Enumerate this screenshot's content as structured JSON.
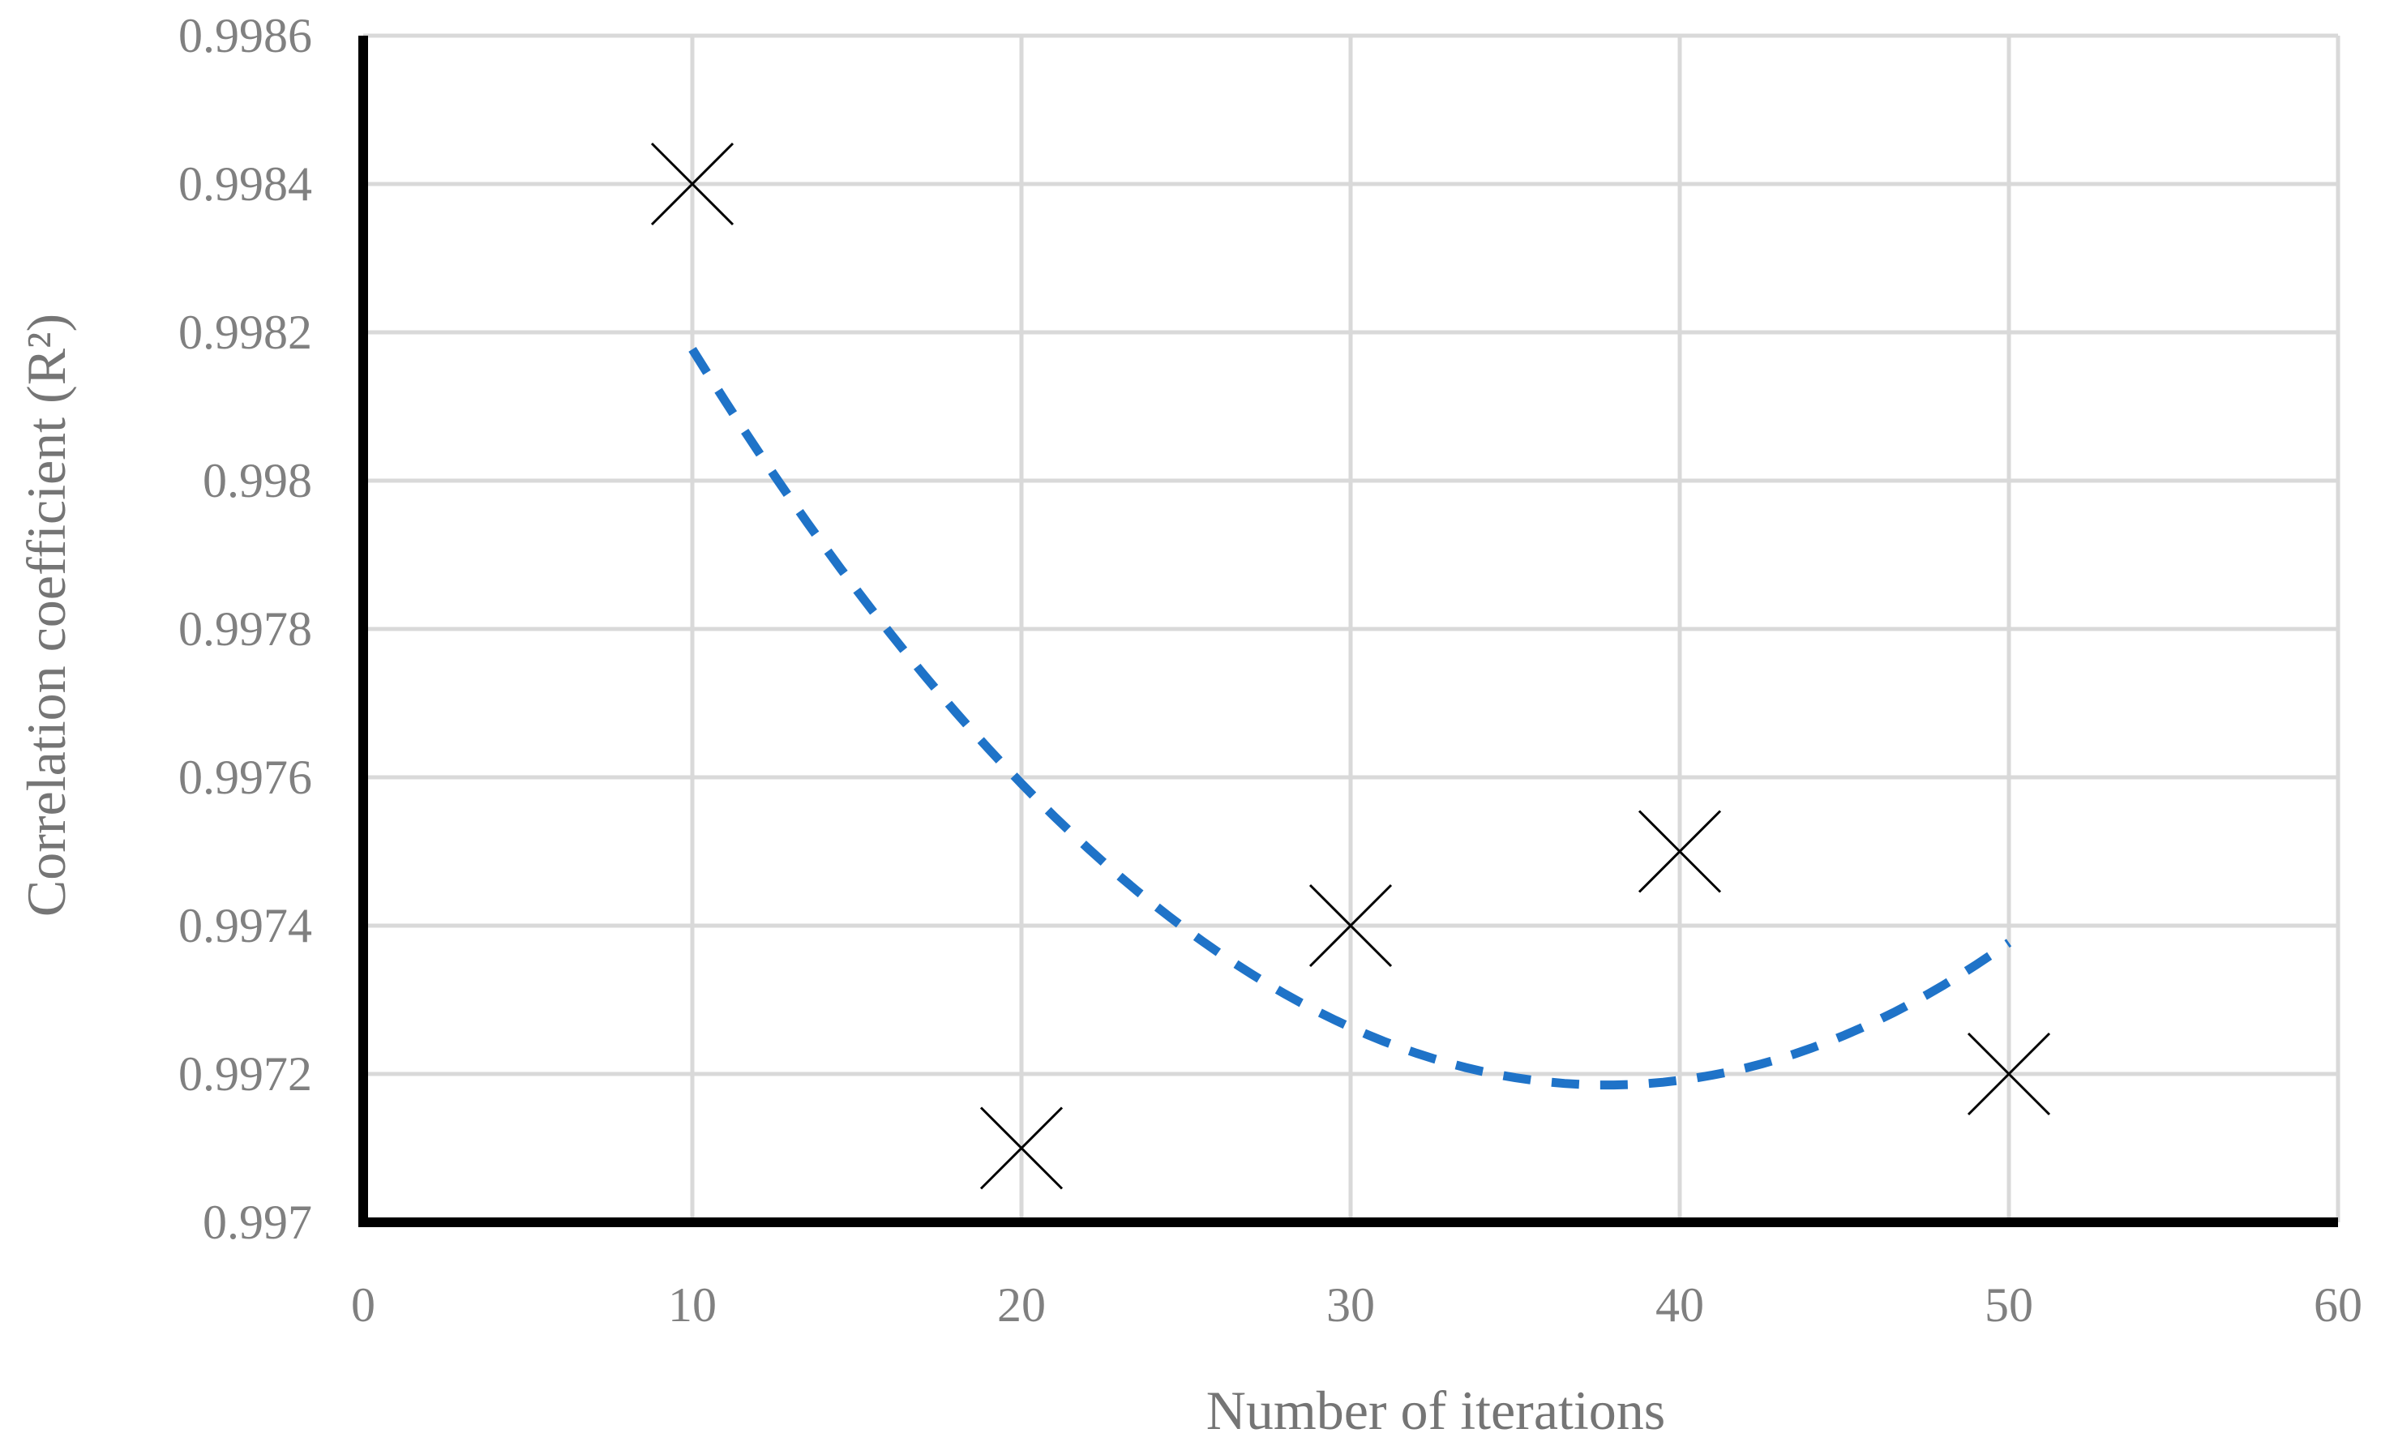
{
  "chart_data": {
    "type": "scatter",
    "xlabel": "Number of iterations",
    "ylabel": "Correlation coefficient (R²)",
    "xlim": [
      0,
      60
    ],
    "ylim": [
      0.997,
      0.9986
    ],
    "x_ticks": [
      "0",
      "10",
      "20",
      "30",
      "40",
      "50",
      "60"
    ],
    "y_ticks": [
      "0.997",
      "0.9972",
      "0.9974",
      "0.9976",
      "0.9978",
      "0.998",
      "0.9982",
      "0.9984",
      "0.9986"
    ],
    "grid": true,
    "legend": "none",
    "points": [
      {
        "x": 10,
        "y": 0.9984
      },
      {
        "x": 20,
        "y": 0.9971
      },
      {
        "x": 30,
        "y": 0.9974
      },
      {
        "x": 40,
        "y": 0.9975
      },
      {
        "x": 50,
        "y": 0.9972
      }
    ],
    "trendline": {
      "type": "polynomial",
      "order": 2,
      "style": "dashed",
      "x_range": [
        10,
        50
      ]
    },
    "colors": {
      "markers": "#000000",
      "trendline": "#1f73c8",
      "grid": "#d9d9d9",
      "axes": "#000000",
      "labels": "#808080"
    }
  }
}
